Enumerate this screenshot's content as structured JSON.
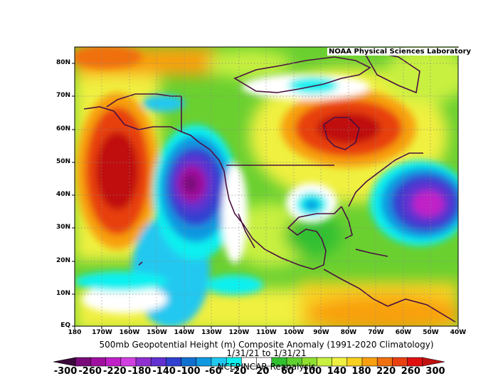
{
  "map": {
    "credit": "NOAA Physical Sciences Laboratory",
    "title": "500mb Geopotential Height (m) Composite Anomaly (1991-2020 Climatology)",
    "date_range": "1/31/21 to 1/31/21",
    "source": "NCEP/NCAR Reanalysis",
    "lat_labels": [
      "80N",
      "70N",
      "60N",
      "50N",
      "40N",
      "30N",
      "20N",
      "10N",
      "EQ"
    ],
    "lon_labels": [
      "180",
      "170W",
      "160W",
      "150W",
      "140W",
      "130W",
      "120W",
      "110W",
      "100W",
      "90W",
      "80W",
      "70W",
      "60W",
      "50W",
      "40W"
    ],
    "colorbar": {
      "labels": [
        "-300",
        "-260",
        "-220",
        "-180",
        "-140",
        "-100",
        "-60",
        "-20",
        "20",
        "60",
        "100",
        "140",
        "180",
        "220",
        "260",
        "300"
      ],
      "colors": [
        "#3a0a3a",
        "#7a0a7a",
        "#a010a0",
        "#c020c8",
        "#d040e0",
        "#9030d0",
        "#6030d0",
        "#3040d0",
        "#1070d0",
        "#1098e0",
        "#20c8f0",
        "#10f0f0",
        "#ffffff",
        "#ffffff",
        "#30c030",
        "#60d030",
        "#90e030",
        "#c8f040",
        "#f0f040",
        "#f8d020",
        "#f8a010",
        "#f07010",
        "#e84010",
        "#e01010",
        "#c01010"
      ]
    }
  }
}
